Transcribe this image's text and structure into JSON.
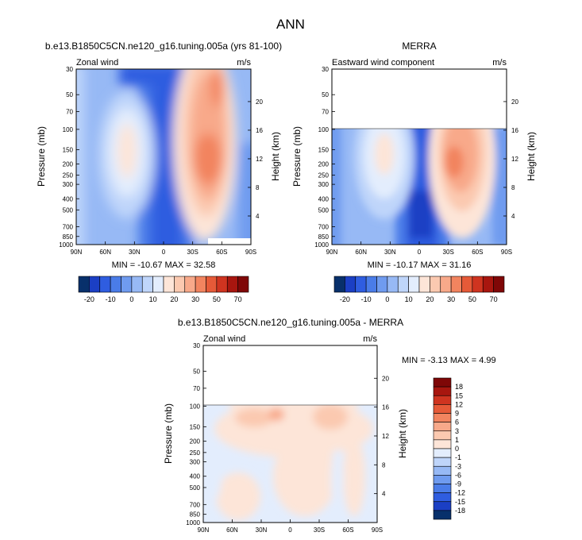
{
  "page_title": "ANN",
  "chart_data": [
    {
      "type": "heatmap",
      "title": "b.e13.B1850C5CN.ne120_g16.tuning.005a (yrs 81-100)",
      "subtitle_left": "Zonal wind",
      "subtitle_right": "m/s",
      "ylabel": "Pressure (mb)",
      "ylabel_right": "Height (km)",
      "x_ticks": [
        "90N",
        "60N",
        "30N",
        "0",
        "30S",
        "60S",
        "90S"
      ],
      "y_ticks": [
        "30",
        "50",
        "70",
        "100",
        "150",
        "200",
        "250",
        "300",
        "400",
        "500",
        "700",
        "850",
        "1000"
      ],
      "y_ticks_right": [
        "20",
        "16",
        "12",
        "8",
        "4"
      ],
      "stats_text": "MIN = -10.67  MAX = 32.58",
      "min": -10.67,
      "max": 32.58,
      "colorbar_labels": [
        "-20",
        "-10",
        "0",
        "10",
        "20",
        "30",
        "50",
        "70"
      ],
      "colorbar_colors": [
        "#08306b",
        "#1b3fc4",
        "#2f5de0",
        "#4a7ce8",
        "#6f9bef",
        "#97b9f5",
        "#bfd5fa",
        "#e3edfd",
        "#fde5d8",
        "#fbc9b0",
        "#f8a98a",
        "#f2845f",
        "#e65a38",
        "#cf3420",
        "#a8160f",
        "#7f0707"
      ]
    },
    {
      "type": "heatmap",
      "title": "MERRA",
      "subtitle_left": "Eastward wind component",
      "subtitle_right": "m/s",
      "ylabel": "Pressure (mb)",
      "ylabel_right": "Height (km)",
      "x_ticks": [
        "90N",
        "60N",
        "30N",
        "0",
        "30S",
        "60S",
        "90S"
      ],
      "y_ticks": [
        "30",
        "50",
        "70",
        "100",
        "150",
        "200",
        "250",
        "300",
        "400",
        "500",
        "700",
        "850",
        "1000"
      ],
      "y_ticks_right": [
        "20",
        "16",
        "12",
        "8",
        "4"
      ],
      "stats_text": "MIN = -10.17  MAX = 31.16",
      "min": -10.17,
      "max": 31.16,
      "colorbar_labels": [
        "-20",
        "-10",
        "0",
        "10",
        "20",
        "30",
        "50",
        "70"
      ],
      "colorbar_colors": [
        "#08306b",
        "#1b3fc4",
        "#2f5de0",
        "#4a7ce8",
        "#6f9bef",
        "#97b9f5",
        "#bfd5fa",
        "#e3edfd",
        "#fde5d8",
        "#fbc9b0",
        "#f8a98a",
        "#f2845f",
        "#e65a38",
        "#cf3420",
        "#a8160f",
        "#7f0707"
      ]
    },
    {
      "type": "heatmap",
      "title": "b.e13.B1850C5CN.ne120_g16.tuning.005a - MERRA",
      "subtitle_left": "Zonal wind",
      "subtitle_right": "m/s",
      "ylabel": "Pressure (mb)",
      "ylabel_right": "Height (km)",
      "x_ticks": [
        "90N",
        "60N",
        "30N",
        "0",
        "30S",
        "60S",
        "90S"
      ],
      "y_ticks": [
        "30",
        "50",
        "70",
        "100",
        "150",
        "200",
        "250",
        "300",
        "400",
        "500",
        "700",
        "850",
        "1000"
      ],
      "y_ticks_right": [
        "20",
        "16",
        "12",
        "8",
        "4"
      ],
      "stats_text": "MIN = -3.13  MAX =  4.99",
      "min": -3.13,
      "max": 4.99,
      "colorbar_labels": [
        "18",
        "15",
        "12",
        "9",
        "6",
        "3",
        "1",
        "0",
        "-1",
        "-3",
        "-6",
        "-9",
        "-12",
        "-15",
        "-18"
      ],
      "colorbar_colors": [
        "#7f0707",
        "#a8160f",
        "#cf3420",
        "#e65a38",
        "#f2845f",
        "#f8a98a",
        "#fbc9b0",
        "#fde5d8",
        "#e3edfd",
        "#bfd5fa",
        "#97b9f5",
        "#6f9bef",
        "#4a7ce8",
        "#2f5de0",
        "#1b3fc4",
        "#08306b"
      ]
    }
  ]
}
